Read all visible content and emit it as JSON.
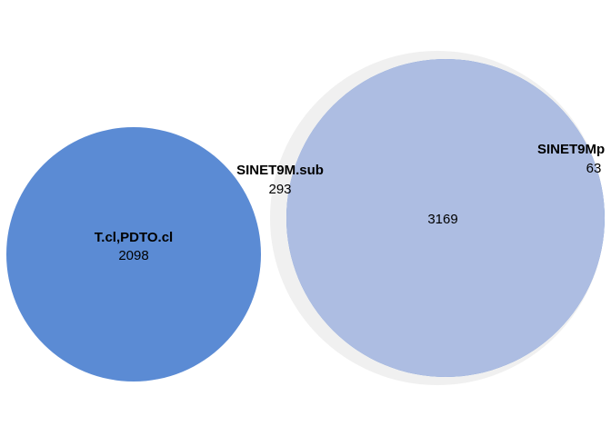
{
  "sets": [
    {
      "name": "T.cl,PDTO.cl",
      "count": "2098",
      "color": "#5b8bd4"
    },
    {
      "name": "SINET9M.sub",
      "count": "293",
      "color": "#f0f0f0"
    },
    {
      "name": "SINET9Mp",
      "count": "63",
      "color": "#5b8bd4"
    }
  ],
  "intersection": {
    "sets": [
      "SINET9M.sub",
      "SINET9Mp"
    ],
    "count": "3169",
    "color": "#adbde2"
  }
}
